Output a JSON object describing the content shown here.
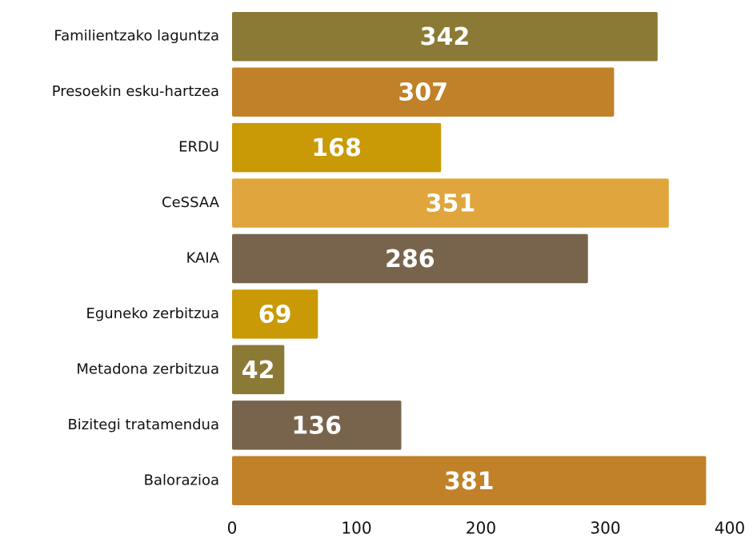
{
  "chart_data": {
    "type": "bar",
    "orientation": "horizontal",
    "categories": [
      "Familientzako laguntza",
      "Presoekin esku-hartzea",
      "ERDU",
      "CeSSAA",
      "KAIA",
      "Eguneko zerbitzua",
      "Metadona zerbitzua",
      "Bizitegi tratamendua",
      "Balorazioa"
    ],
    "values": [
      342,
      307,
      168,
      351,
      286,
      69,
      42,
      136,
      381
    ],
    "colors": [
      "#8b7a35",
      "#c08128",
      "#c99a06",
      "#e0a53c",
      "#78644c",
      "#c99a06",
      "#8b7a35",
      "#78644c",
      "#c08128"
    ],
    "xlim": [
      0,
      400
    ],
    "xticks": [
      0,
      100,
      200,
      300,
      400
    ],
    "grid": false
  }
}
